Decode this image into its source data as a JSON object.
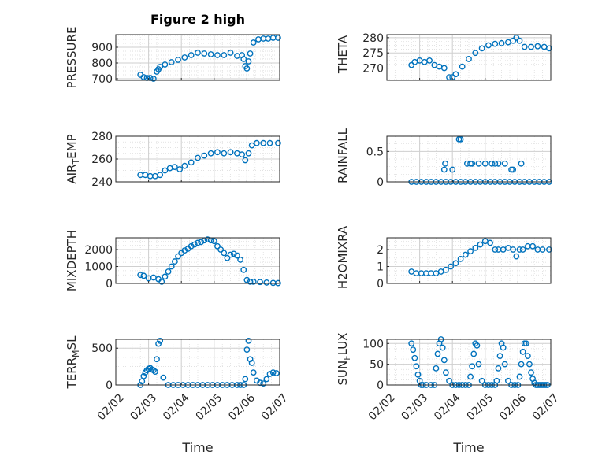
{
  "figure": {
    "title": "Figure 2 high",
    "x_axis_label": "Time",
    "x_tick_labels": [
      "02/02",
      "02/03",
      "02/04",
      "02/05",
      "02/06",
      "02/07"
    ],
    "marker_color": "#0072BD"
  },
  "chart_data": [
    {
      "id": "pressure",
      "type": "scatter",
      "ylabel": "PRESSURE",
      "title": "Figure 2 high",
      "xlim": [
        0,
        5
      ],
      "ylim": [
        690,
        980
      ],
      "yticks": [
        700,
        800,
        900
      ],
      "grid": true,
      "x": [
        0.75,
        0.85,
        0.95,
        1.05,
        1.15,
        1.25,
        1.3,
        1.35,
        1.5,
        1.7,
        1.9,
        2.1,
        2.3,
        2.5,
        2.7,
        2.9,
        3.1,
        3.3,
        3.5,
        3.7,
        3.85,
        3.9,
        3.95,
        4.0,
        4.05,
        4.1,
        4.2,
        4.35,
        4.5,
        4.65,
        4.8,
        4.95
      ],
      "y": [
        725,
        710,
        705,
        705,
        700,
        745,
        760,
        775,
        790,
        805,
        820,
        835,
        850,
        865,
        860,
        855,
        850,
        850,
        865,
        845,
        850,
        825,
        780,
        765,
        810,
        860,
        930,
        950,
        955,
        955,
        960,
        960
      ]
    },
    {
      "id": "theta",
      "type": "scatter",
      "ylabel": "THETA",
      "xlim": [
        0,
        5
      ],
      "ylim": [
        266,
        281
      ],
      "yticks": [
        270,
        275,
        280
      ],
      "grid": true,
      "x": [
        0.75,
        0.85,
        1.0,
        1.15,
        1.3,
        1.45,
        1.6,
        1.75,
        1.9,
        2.0,
        2.1,
        2.3,
        2.5,
        2.7,
        2.9,
        3.1,
        3.3,
        3.5,
        3.7,
        3.85,
        3.95,
        4.05,
        4.2,
        4.4,
        4.6,
        4.8,
        4.95
      ],
      "y": [
        271,
        272,
        272.5,
        272,
        272.5,
        271,
        270.5,
        270,
        267,
        267,
        268,
        270.5,
        273,
        275,
        276.5,
        277.5,
        278,
        278.2,
        278.5,
        279,
        280,
        279,
        277,
        277,
        277.2,
        277,
        276.5
      ]
    },
    {
      "id": "air_temp",
      "type": "scatter",
      "ylabel": "AIR_TEMP",
      "xlim": [
        0,
        5
      ],
      "ylim": [
        240,
        280
      ],
      "yticks": [
        240,
        260,
        280
      ],
      "grid": true,
      "x": [
        0.75,
        0.9,
        1.05,
        1.2,
        1.35,
        1.5,
        1.65,
        1.8,
        1.95,
        2.1,
        2.3,
        2.5,
        2.7,
        2.9,
        3.1,
        3.3,
        3.5,
        3.7,
        3.85,
        3.95,
        4.05,
        4.15,
        4.3,
        4.5,
        4.7,
        4.95
      ],
      "y": [
        246,
        246,
        245,
        245,
        246,
        250,
        252,
        253,
        251,
        254,
        257,
        261,
        263,
        265,
        266,
        265,
        266,
        265,
        264,
        259,
        265,
        272,
        274,
        274,
        274,
        274
      ]
    },
    {
      "id": "rainfall",
      "type": "scatter",
      "ylabel": "RAINFALL",
      "xlim": [
        0,
        5
      ],
      "ylim": [
        0,
        0.75
      ],
      "yticks": [
        0,
        0.5
      ],
      "grid": true,
      "x": [
        0.75,
        0.9,
        1.05,
        1.2,
        1.35,
        1.5,
        1.65,
        1.8,
        1.95,
        2.1,
        2.25,
        2.4,
        2.55,
        2.7,
        2.85,
        3.0,
        3.15,
        3.3,
        3.45,
        3.6,
        3.75,
        3.9,
        4.05,
        4.2,
        4.35,
        4.5,
        4.65,
        4.8,
        4.95,
        1.75,
        1.78,
        2.0,
        2.2,
        2.25,
        2.45,
        2.55,
        2.6,
        2.8,
        3.0,
        3.2,
        3.3,
        3.4,
        3.6,
        3.8,
        3.85,
        4.1
      ],
      "y": [
        0,
        0,
        0,
        0,
        0,
        0,
        0,
        0,
        0,
        0,
        0,
        0,
        0,
        0,
        0,
        0,
        0,
        0,
        0,
        0,
        0,
        0,
        0,
        0,
        0,
        0,
        0,
        0,
        0,
        0.2,
        0.3,
        0.2,
        0.7,
        0.7,
        0.3,
        0.3,
        0.3,
        0.3,
        0.3,
        0.3,
        0.3,
        0.3,
        0.3,
        0.2,
        0.2,
        0.3
      ]
    },
    {
      "id": "mixdepth",
      "type": "scatter",
      "ylabel": "MIXDEPTH",
      "xlim": [
        0,
        5
      ],
      "ylim": [
        0,
        2700
      ],
      "yticks": [
        0,
        1000,
        2000
      ],
      "grid": true,
      "x": [
        0.75,
        0.85,
        1.0,
        1.15,
        1.3,
        1.4,
        1.5,
        1.6,
        1.7,
        1.8,
        1.9,
        2.0,
        2.1,
        2.2,
        2.3,
        2.4,
        2.5,
        2.6,
        2.7,
        2.8,
        2.9,
        3.0,
        3.1,
        3.2,
        3.3,
        3.4,
        3.5,
        3.6,
        3.7,
        3.8,
        3.9,
        4.0,
        4.1,
        4.2,
        4.4,
        4.6,
        4.8,
        4.95
      ],
      "y": [
        500,
        450,
        300,
        350,
        250,
        100,
        400,
        700,
        1000,
        1300,
        1600,
        1800,
        1950,
        2050,
        2200,
        2300,
        2400,
        2450,
        2550,
        2600,
        2550,
        2500,
        2200,
        2000,
        1800,
        1500,
        1700,
        1750,
        1650,
        1400,
        800,
        200,
        100,
        100,
        80,
        50,
        30,
        20
      ]
    },
    {
      "id": "h2omixra",
      "type": "scatter",
      "ylabel": "H2OMIXRA",
      "xlim": [
        0,
        5
      ],
      "ylim": [
        0,
        2.7
      ],
      "yticks": [
        0,
        1,
        2
      ],
      "grid": true,
      "x": [
        0.75,
        0.9,
        1.05,
        1.2,
        1.35,
        1.5,
        1.65,
        1.8,
        1.95,
        2.1,
        2.25,
        2.4,
        2.55,
        2.7,
        2.85,
        3.0,
        3.15,
        3.3,
        3.4,
        3.55,
        3.7,
        3.85,
        3.95,
        4.05,
        4.15,
        4.3,
        4.45,
        4.6,
        4.75,
        4.95
      ],
      "y": [
        0.7,
        0.6,
        0.6,
        0.6,
        0.6,
        0.6,
        0.7,
        0.8,
        1.0,
        1.2,
        1.45,
        1.7,
        1.9,
        2.1,
        2.3,
        2.5,
        2.4,
        2.0,
        2.0,
        2.0,
        2.1,
        2.0,
        1.6,
        2.0,
        2.0,
        2.2,
        2.2,
        2.0,
        2.0,
        2.0
      ]
    },
    {
      "id": "terr_msl",
      "type": "scatter",
      "ylabel": "TERR_MSL",
      "xlim": [
        0,
        5
      ],
      "ylim": [
        0,
        620
      ],
      "yticks": [
        0,
        500
      ],
      "grid": true,
      "x": [
        0.75,
        0.8,
        0.85,
        0.9,
        0.95,
        1.0,
        1.05,
        1.1,
        1.15,
        1.2,
        1.25,
        1.3,
        1.35,
        1.45,
        1.6,
        1.75,
        1.9,
        2.05,
        2.2,
        2.35,
        2.5,
        2.65,
        2.8,
        2.95,
        3.1,
        3.25,
        3.4,
        3.55,
        3.7,
        3.8,
        3.9,
        3.95,
        4.0,
        4.05,
        4.1,
        4.15,
        4.2,
        4.3,
        4.4,
        4.5,
        4.6,
        4.7,
        4.8,
        4.9
      ],
      "y": [
        0,
        50,
        120,
        170,
        200,
        220,
        230,
        210,
        200,
        180,
        350,
        560,
        600,
        100,
        0,
        0,
        0,
        0,
        0,
        0,
        0,
        0,
        0,
        0,
        0,
        0,
        0,
        0,
        0,
        0,
        0,
        80,
        480,
        600,
        350,
        300,
        170,
        60,
        30,
        20,
        80,
        150,
        170,
        160
      ]
    },
    {
      "id": "sun_flux",
      "type": "scatter",
      "ylabel": "SUN_FLUX",
      "xlim": [
        0,
        5
      ],
      "ylim": [
        0,
        110
      ],
      "yticks": [
        0,
        50,
        100
      ],
      "grid": true,
      "x": [
        0.75,
        0.8,
        0.85,
        0.9,
        0.95,
        1.0,
        1.05,
        1.1,
        1.2,
        1.35,
        1.45,
        1.5,
        1.55,
        1.6,
        1.65,
        1.7,
        1.75,
        1.8,
        1.9,
        2.0,
        2.1,
        2.2,
        2.3,
        2.4,
        2.5,
        2.55,
        2.6,
        2.65,
        2.7,
        2.75,
        2.8,
        2.9,
        3.0,
        3.1,
        3.2,
        3.3,
        3.35,
        3.4,
        3.45,
        3.5,
        3.55,
        3.6,
        3.7,
        3.8,
        3.9,
        4.0,
        4.05,
        4.1,
        4.15,
        4.2,
        4.25,
        4.3,
        4.35,
        4.4,
        4.45,
        4.5,
        4.55,
        4.6,
        4.65,
        4.7,
        4.75,
        4.8,
        4.85,
        4.9
      ],
      "y": [
        100,
        85,
        65,
        45,
        25,
        10,
        0,
        0,
        0,
        0,
        0,
        40,
        75,
        100,
        110,
        90,
        60,
        30,
        10,
        0,
        0,
        0,
        0,
        0,
        0,
        20,
        45,
        75,
        100,
        95,
        50,
        10,
        0,
        0,
        0,
        0,
        10,
        40,
        70,
        100,
        90,
        50,
        10,
        0,
        0,
        0,
        20,
        50,
        80,
        100,
        100,
        70,
        50,
        30,
        15,
        5,
        0,
        0,
        0,
        0,
        0,
        0,
        0,
        0
      ]
    }
  ]
}
